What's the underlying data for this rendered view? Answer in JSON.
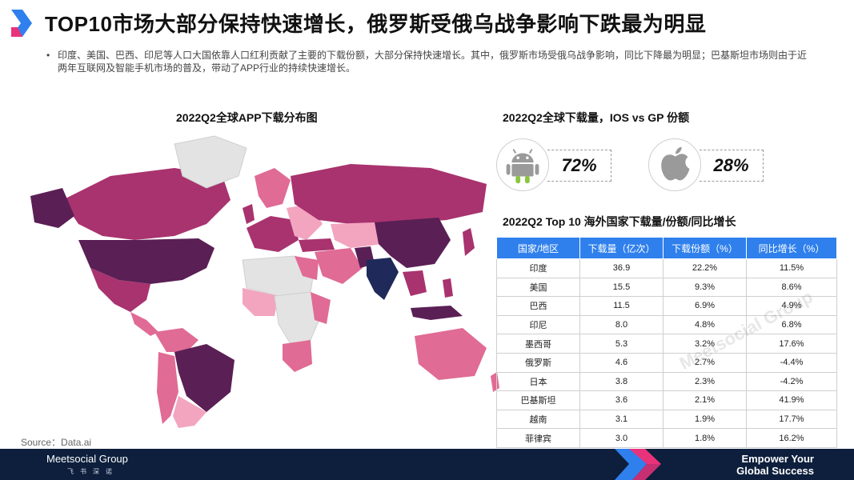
{
  "title": "TOP10市场大部分保持快速增长，俄罗斯受俄乌战争影响下跌最为明显",
  "bullet": "印度、美国、巴西、印尼等人口大国依靠人口红利贡献了主要的下载份额，大部分保持快速增长。其中，俄罗斯市场受俄乌战争影响，同比下降最为明显；巴基斯坦市场则由于近两年互联网及智能手机市场的普及，带动了APP行业的持续快速增长。",
  "map_title": "2022Q2全球APP下载分布图",
  "share_title": "2022Q2全球下载量，IOS vs GP 份额",
  "share": {
    "android": {
      "icon": "android-icon",
      "value": "72%"
    },
    "ios": {
      "icon": "apple-icon",
      "value": "28%"
    }
  },
  "table_title": "2022Q2 Top 10 海外国家下载量/份额/同比增长",
  "table": {
    "headers": [
      "国家/地区",
      "下载量（亿次）",
      "下载份额（%）",
      "同比增长（%）"
    ],
    "rows": [
      [
        "印度",
        "36.9",
        "22.2%",
        "11.5%"
      ],
      [
        "美国",
        "15.5",
        "9.3%",
        "8.6%"
      ],
      [
        "巴西",
        "11.5",
        "6.9%",
        "4.9%"
      ],
      [
        "印尼",
        "8.0",
        "4.8%",
        "6.8%"
      ],
      [
        "墨西哥",
        "5.3",
        "3.2%",
        "17.6%"
      ],
      [
        "俄罗斯",
        "4.6",
        "2.7%",
        "-4.4%"
      ],
      [
        "日本",
        "3.8",
        "2.3%",
        "-4.2%"
      ],
      [
        "巴基斯坦",
        "3.6",
        "2.1%",
        "41.9%"
      ],
      [
        "越南",
        "3.1",
        "1.9%",
        "17.7%"
      ],
      [
        "菲律宾",
        "3.0",
        "1.8%",
        "16.2%"
      ]
    ]
  },
  "source": "Source：Data.ai",
  "footer": {
    "brand": "Meetsocial Group",
    "brand_sub": "飞书深诺",
    "slogan_line1": "Empower Your",
    "slogan_line2": "Global Success"
  },
  "watermark": "Meetsocial Group",
  "colors": {
    "table_header": "#2f80ed",
    "footer_bg": "#0d1f3c",
    "map_darkest": "#1f2a5a",
    "map_dark": "#5a1f55",
    "map_mid": "#a8336e",
    "map_light": "#e06b95",
    "map_lightest": "#f3a5c0",
    "map_nodata": "#e3e3e3"
  }
}
